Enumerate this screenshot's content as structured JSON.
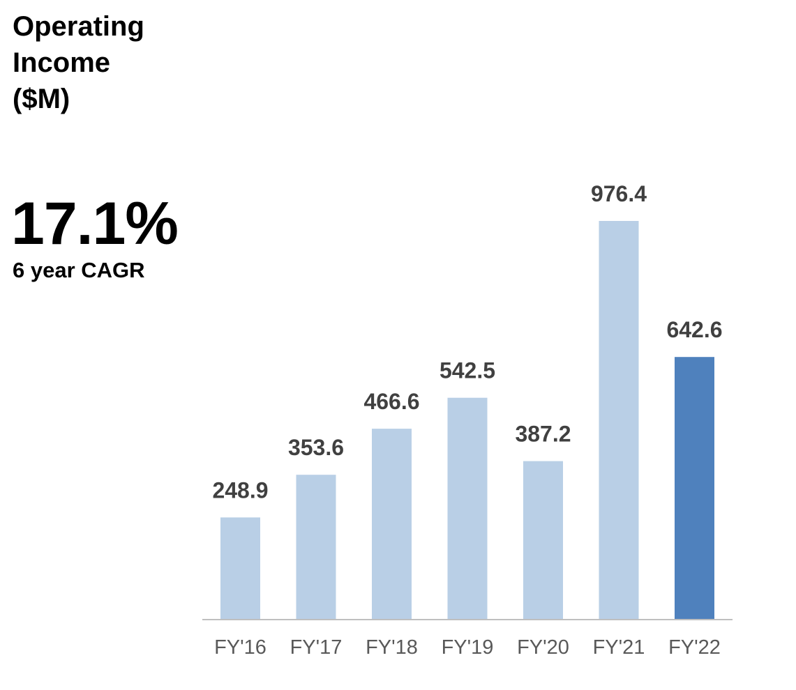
{
  "title_lines": [
    "Operating",
    "Income",
    "($M)"
  ],
  "metric": {
    "value": "17.1%",
    "label": "6 year CAGR"
  },
  "colors": {
    "bar_default": "#b9cfe6",
    "bar_highlight": "#4f81bd",
    "axis": "#bfbfbf",
    "data_label": "#404040",
    "tick_label": "#595959"
  },
  "chart_data": {
    "type": "bar",
    "title": "Operating Income ($M)",
    "categories": [
      "FY'16",
      "FY'17",
      "FY'18",
      "FY'19",
      "FY'20",
      "FY'21",
      "FY'22"
    ],
    "values": [
      248.9,
      353.6,
      466.6,
      542.5,
      387.2,
      976.4,
      642.6
    ],
    "labels": [
      "248.9",
      "353.6",
      "466.6",
      "542.5",
      "387.2",
      "976.4",
      "642.6"
    ],
    "highlight_index": 6,
    "ylim": [
      0,
      1000
    ],
    "xlabel": "",
    "ylabel": "",
    "grid": false,
    "legend": "none"
  }
}
